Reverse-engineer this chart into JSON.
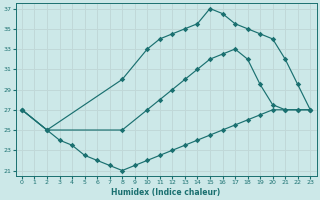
{
  "xlabel": "Humidex (Indice chaleur)",
  "bg_color": "#cce8e8",
  "line_color": "#1a7070",
  "grid_color": "#c0d8d8",
  "xlim": [
    -0.5,
    23.5
  ],
  "ylim": [
    20.5,
    37.5
  ],
  "xticks": [
    0,
    1,
    2,
    3,
    4,
    5,
    6,
    7,
    8,
    9,
    10,
    11,
    12,
    13,
    14,
    15,
    16,
    17,
    18,
    19,
    20,
    21,
    22,
    23
  ],
  "yticks": [
    21,
    23,
    25,
    27,
    29,
    31,
    33,
    35,
    37
  ],
  "line1_x": [
    0,
    2,
    3,
    4,
    5,
    6,
    7,
    8,
    9,
    10,
    11,
    12,
    13,
    14,
    15,
    16,
    17,
    18,
    19,
    20,
    21,
    22,
    23
  ],
  "line1_y": [
    27,
    25,
    24,
    23.5,
    22.5,
    22,
    21.5,
    21,
    21.5,
    22,
    22.5,
    23,
    23.5,
    24,
    24.5,
    25,
    25.5,
    26,
    26.5,
    27,
    27,
    27,
    27
  ],
  "line2_x": [
    0,
    2,
    8,
    10,
    11,
    12,
    13,
    14,
    15,
    16,
    17,
    18,
    19,
    20,
    21,
    22,
    23
  ],
  "line2_y": [
    27,
    25,
    30,
    33,
    34,
    34.5,
    35,
    35.5,
    37,
    36.5,
    35.5,
    35,
    34.5,
    34,
    32,
    29.5,
    27
  ],
  "line3_x": [
    0,
    2,
    8,
    10,
    11,
    12,
    13,
    14,
    15,
    16,
    17,
    18,
    19,
    20,
    21,
    22,
    23
  ],
  "line3_y": [
    27,
    25,
    25,
    27,
    28,
    29,
    30,
    31,
    32,
    32.5,
    33,
    32,
    29.5,
    27.5,
    27,
    27,
    27
  ]
}
